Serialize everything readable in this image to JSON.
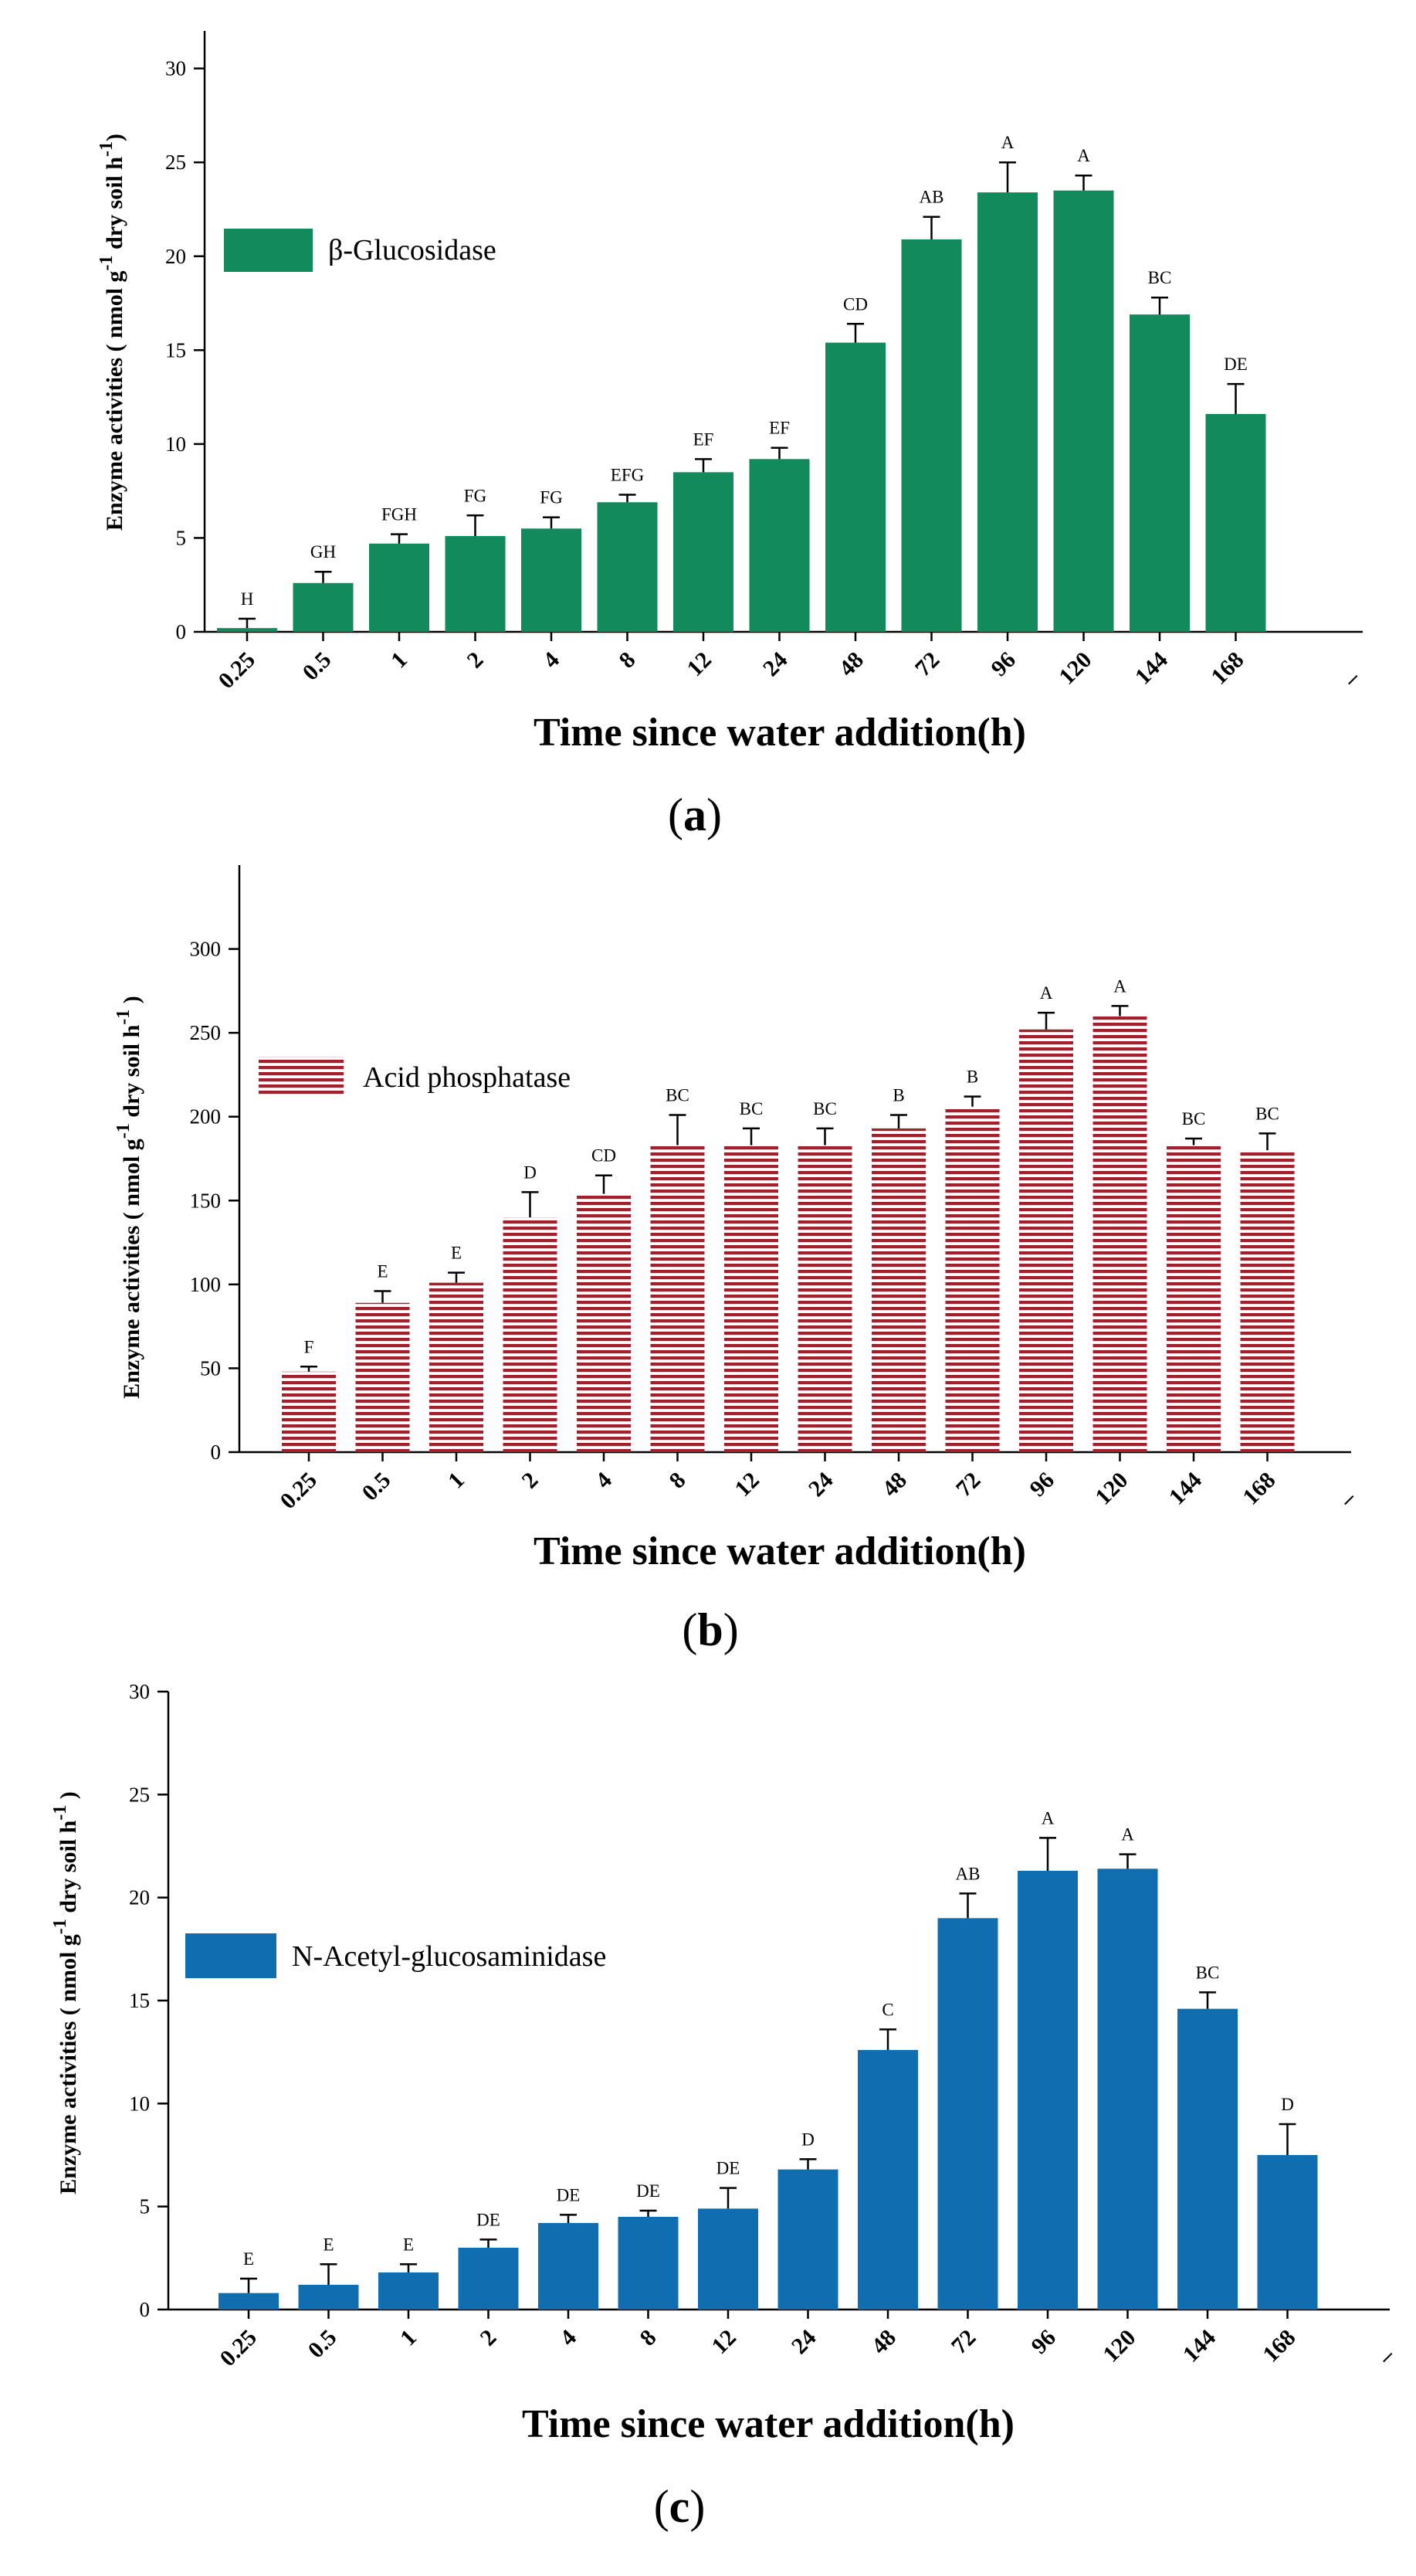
{
  "chart_data": [
    {
      "type": "bar",
      "panel_label": "a",
      "title": "",
      "legend": "β-Glucosidase",
      "color": "#128a5b",
      "pattern": "solid",
      "categories": [
        "0.25",
        "0.5",
        "1",
        "2",
        "4",
        "8",
        "12",
        "24",
        "48",
        "72",
        "96",
        "120",
        "144",
        "168"
      ],
      "values": [
        0.2,
        2.6,
        4.7,
        5.1,
        5.5,
        6.9,
        8.5,
        9.2,
        15.4,
        20.9,
        23.4,
        23.5,
        16.9,
        11.6
      ],
      "errors": [
        0.5,
        0.6,
        0.5,
        1.1,
        0.6,
        0.4,
        0.7,
        0.6,
        1.0,
        1.2,
        1.6,
        0.8,
        0.9,
        1.6
      ],
      "letters": [
        "H",
        "GH",
        "FGH",
        "FG",
        "FG",
        "EFG",
        "EF",
        "EF",
        "CD",
        "AB",
        "A",
        "A",
        "BC",
        "DE"
      ],
      "extra_tick": "_",
      "xlabel": "Time since water addition(h)",
      "ylabel": "Enzyme activities ( nmol g-1 dry soil h-1 )",
      "ylabel_parts": [
        "Enzyme activities ( nmol g",
        "-1",
        " dry soil h",
        "-1",
        ")"
      ],
      "ylim": [
        0,
        32
      ],
      "yticks": [
        0,
        5,
        10,
        15,
        20,
        25,
        30
      ]
    },
    {
      "type": "bar",
      "panel_label": "b",
      "title": "",
      "legend": "Acid phosphatase",
      "color": "#a3202a",
      "pattern": "horizontal-stripes",
      "categories": [
        "0.25",
        "0.5",
        "1",
        "2",
        "4",
        "8",
        "12",
        "24",
        "48",
        "72",
        "96",
        "120",
        "144",
        "168"
      ],
      "values": [
        48,
        89,
        101,
        140,
        154,
        183,
        183,
        183,
        193,
        206,
        252,
        260,
        183,
        180
      ],
      "errors": [
        3,
        7,
        6,
        15,
        11,
        18,
        10,
        10,
        8,
        6,
        10,
        6,
        4,
        10
      ],
      "letters": [
        "F",
        "E",
        "E",
        "D",
        "CD",
        "BC",
        "BC",
        "BC",
        "B",
        "B",
        "A",
        "A",
        "BC",
        "BC"
      ],
      "extra_tick": "_",
      "xlabel": "Time since water addition(h)",
      "ylabel": "Enzyme activities ( nmol g-1 dry soil h-1 )",
      "ylabel_parts": [
        "Enzyme activities ( nmol g",
        "-1",
        " dry soil h",
        "-1",
        " )"
      ],
      "ylim": [
        0,
        350
      ],
      "yticks": [
        0,
        50,
        100,
        150,
        200,
        250,
        300
      ]
    },
    {
      "type": "bar",
      "panel_label": "c",
      "title": "",
      "legend": "N-Acetyl-glucosaminidase",
      "color": "#0f6db0",
      "pattern": "solid",
      "categories": [
        "0.25",
        "0.5",
        "1",
        "2",
        "4",
        "8",
        "12",
        "24",
        "48",
        "72",
        "96",
        "120",
        "144",
        "168"
      ],
      "values": [
        0.8,
        1.2,
        1.8,
        3.0,
        4.2,
        4.5,
        4.9,
        6.8,
        12.6,
        19.0,
        21.3,
        21.4,
        14.6,
        7.5
      ],
      "errors": [
        0.7,
        1.0,
        0.4,
        0.4,
        0.4,
        0.3,
        1.0,
        0.5,
        1.0,
        1.2,
        1.6,
        0.7,
        0.8,
        1.5
      ],
      "letters": [
        "E",
        "E",
        "E",
        "DE",
        "DE",
        "DE",
        "DE",
        "D",
        "C",
        "AB",
        "A",
        "A",
        "BC",
        "D"
      ],
      "extra_tick": "_",
      "xlabel": "Time since water addition(h)",
      "ylabel": "Enzyme activities ( nmol g-1 dry soil h-1 )",
      "ylabel_parts": [
        "Enzyme activities ( nmol g",
        "-1",
        " dry soil h",
        "-1",
        " )"
      ],
      "ylim": [
        0,
        30
      ],
      "yticks": [
        0,
        5,
        10,
        15,
        20,
        25,
        30
      ]
    }
  ]
}
